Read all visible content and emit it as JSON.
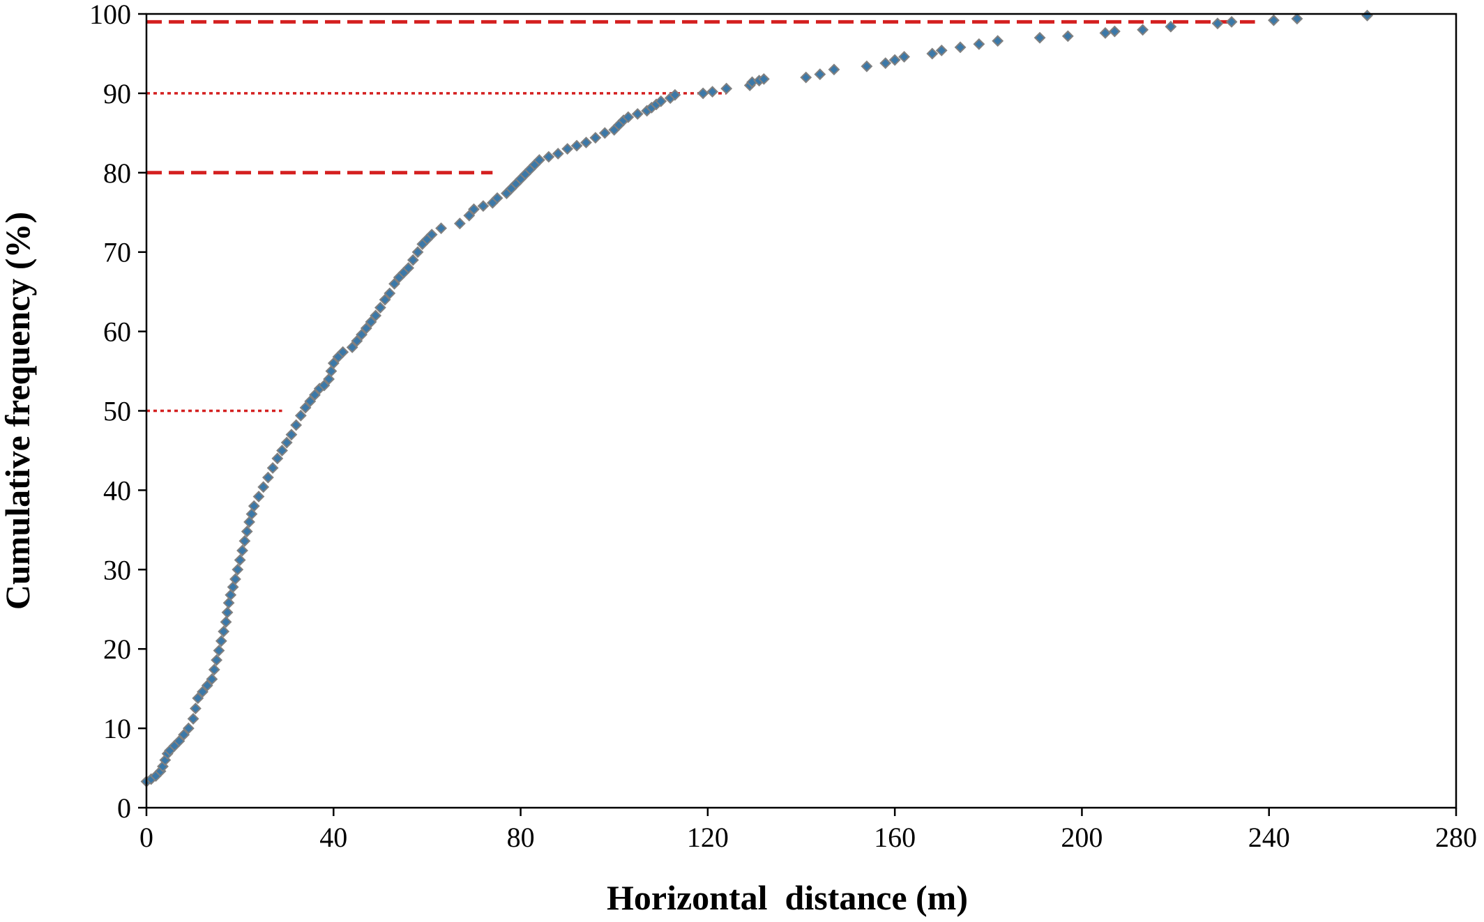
{
  "chart_data": {
    "type": "scatter",
    "title": "",
    "xlabel": "Horizontal  distance (m)",
    "ylabel": "Cumulative frequency (%)",
    "xlim": [
      0,
      280
    ],
    "ylim": [
      0,
      100
    ],
    "xticks": [
      0,
      40,
      80,
      120,
      160,
      200,
      240,
      280
    ],
    "yticks": [
      0,
      10,
      20,
      30,
      40,
      50,
      60,
      70,
      80,
      90,
      100
    ],
    "grid": false,
    "legend": "none",
    "marker": "diamond",
    "colors": {
      "marker": "#3b78a8",
      "marker_edge": "#808080",
      "reference": "#d42020"
    },
    "series": [
      {
        "values": [
          [
            0.0,
            3.3
          ],
          [
            1.0,
            3.6
          ],
          [
            2.0,
            4.0
          ],
          [
            3.0,
            4.6
          ],
          [
            3.5,
            5.2
          ],
          [
            4.0,
            6.0
          ],
          [
            4.5,
            6.8
          ],
          [
            5.0,
            7.2
          ],
          [
            6.0,
            7.8
          ],
          [
            7.0,
            8.4
          ],
          [
            8.0,
            9.2
          ],
          [
            9.0,
            10.0
          ],
          [
            10.0,
            11.2
          ],
          [
            10.5,
            12.5
          ],
          [
            11.0,
            13.8
          ],
          [
            12.0,
            14.6
          ],
          [
            13.0,
            15.4
          ],
          [
            14.0,
            16.2
          ],
          [
            14.5,
            17.4
          ],
          [
            15.0,
            18.6
          ],
          [
            15.5,
            19.8
          ],
          [
            16.0,
            21.0
          ],
          [
            16.5,
            22.2
          ],
          [
            17.0,
            23.4
          ],
          [
            17.3,
            24.6
          ],
          [
            17.6,
            25.8
          ],
          [
            18.0,
            26.8
          ],
          [
            18.5,
            27.8
          ],
          [
            19.0,
            28.8
          ],
          [
            19.5,
            30.0
          ],
          [
            20.0,
            31.2
          ],
          [
            20.5,
            32.4
          ],
          [
            21.0,
            33.6
          ],
          [
            21.5,
            34.8
          ],
          [
            22.0,
            36.0
          ],
          [
            22.5,
            37.0
          ],
          [
            23.0,
            38.0
          ],
          [
            24.0,
            39.2
          ],
          [
            25.0,
            40.4
          ],
          [
            26.0,
            41.6
          ],
          [
            27.0,
            42.8
          ],
          [
            28.0,
            44.0
          ],
          [
            29.0,
            45.0
          ],
          [
            30.0,
            46.0
          ],
          [
            31.0,
            47.0
          ],
          [
            32.0,
            48.2
          ],
          [
            33.0,
            49.4
          ],
          [
            34.0,
            50.4
          ],
          [
            35.0,
            51.2
          ],
          [
            36.0,
            52.0
          ],
          [
            37.0,
            52.8
          ],
          [
            38.0,
            53.2
          ],
          [
            39.0,
            54.0
          ],
          [
            39.5,
            55.0
          ],
          [
            40.0,
            56.0
          ],
          [
            41.0,
            56.8
          ],
          [
            42.0,
            57.4
          ],
          [
            44.0,
            58.0
          ],
          [
            45.0,
            58.8
          ],
          [
            46.0,
            59.6
          ],
          [
            47.0,
            60.4
          ],
          [
            48.0,
            61.2
          ],
          [
            49.0,
            62.0
          ],
          [
            50.0,
            63.0
          ],
          [
            51.0,
            64.0
          ],
          [
            52.0,
            64.8
          ],
          [
            53.0,
            66.0
          ],
          [
            54.0,
            66.8
          ],
          [
            55.0,
            67.4
          ],
          [
            56.0,
            68.0
          ],
          [
            57.0,
            69.0
          ],
          [
            58.0,
            70.0
          ],
          [
            59.0,
            71.0
          ],
          [
            60.0,
            71.6
          ],
          [
            61.0,
            72.2
          ],
          [
            63.0,
            73.0
          ],
          [
            67.0,
            73.6
          ],
          [
            69.0,
            74.6
          ],
          [
            70.0,
            75.4
          ],
          [
            72.0,
            75.8
          ],
          [
            74.0,
            76.2
          ],
          [
            75.0,
            76.8
          ],
          [
            77.0,
            77.4
          ],
          [
            78.0,
            78.0
          ],
          [
            79.0,
            78.6
          ],
          [
            80.0,
            79.2
          ],
          [
            81.0,
            79.8
          ],
          [
            82.0,
            80.4
          ],
          [
            83.0,
            81.0
          ],
          [
            84.0,
            81.6
          ],
          [
            86.0,
            82.0
          ],
          [
            88.0,
            82.4
          ],
          [
            90.0,
            83.0
          ],
          [
            92.0,
            83.4
          ],
          [
            94.0,
            83.8
          ],
          [
            96.0,
            84.4
          ],
          [
            98.0,
            85.0
          ],
          [
            100.0,
            85.4
          ],
          [
            101.0,
            86.0
          ],
          [
            102.0,
            86.6
          ],
          [
            103.0,
            87.0
          ],
          [
            105.0,
            87.4
          ],
          [
            107.0,
            87.8
          ],
          [
            108.0,
            88.2
          ],
          [
            109.0,
            88.6
          ],
          [
            110.0,
            89.0
          ],
          [
            112.0,
            89.4
          ],
          [
            113.0,
            89.8
          ],
          [
            119.0,
            90.0
          ],
          [
            121.0,
            90.2
          ],
          [
            124.0,
            90.6
          ],
          [
            129.0,
            91.0
          ],
          [
            129.5,
            91.4
          ],
          [
            131.0,
            91.6
          ],
          [
            132.0,
            91.8
          ],
          [
            141.0,
            92.0
          ],
          [
            144.0,
            92.4
          ],
          [
            147.0,
            93.0
          ],
          [
            154.0,
            93.4
          ],
          [
            158.0,
            93.8
          ],
          [
            160.0,
            94.2
          ],
          [
            162.0,
            94.6
          ],
          [
            168.0,
            95.0
          ],
          [
            170.0,
            95.4
          ],
          [
            174.0,
            95.8
          ],
          [
            178.0,
            96.2
          ],
          [
            182.0,
            96.6
          ],
          [
            191.0,
            97.0
          ],
          [
            197.0,
            97.2
          ],
          [
            205.0,
            97.6
          ],
          [
            207.0,
            97.8
          ],
          [
            213.0,
            98.0
          ],
          [
            219.0,
            98.4
          ],
          [
            229.0,
            98.8
          ],
          [
            232.0,
            99.0
          ],
          [
            241.0,
            99.2
          ],
          [
            246.0,
            99.4
          ],
          [
            261.0,
            99.8
          ]
        ]
      }
    ],
    "reference_lines": [
      {
        "y": 99,
        "x_end": 237,
        "style": "dashed"
      },
      {
        "y": 90,
        "x_end": 124,
        "style": "dotted"
      },
      {
        "y": 80,
        "x_end": 74,
        "style": "dashed"
      },
      {
        "y": 50,
        "x_end": 29,
        "style": "dotted"
      }
    ]
  }
}
